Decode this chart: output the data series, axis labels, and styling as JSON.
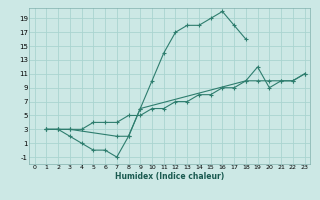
{
  "xlabel": "Humidex (Indice chaleur)",
  "bg_color": "#cce8e5",
  "grid_color": "#aad4d0",
  "line_color": "#2e7d6e",
  "xlim": [
    -0.5,
    23.5
  ],
  "ylim": [
    -2,
    20.5
  ],
  "xticks": [
    0,
    1,
    2,
    3,
    4,
    5,
    6,
    7,
    8,
    9,
    10,
    11,
    12,
    13,
    14,
    15,
    16,
    17,
    18,
    19,
    20,
    21,
    22,
    23
  ],
  "yticks": [
    -1,
    1,
    3,
    5,
    7,
    9,
    11,
    13,
    15,
    17,
    19
  ],
  "line1_x": [
    1,
    2,
    3,
    4,
    5,
    6,
    7,
    8,
    9,
    10,
    11,
    12,
    13,
    14,
    15,
    16,
    17,
    18
  ],
  "line1_y": [
    3,
    3,
    2,
    1,
    0,
    0,
    -1,
    2,
    6,
    10,
    14,
    17,
    18,
    18,
    19,
    20,
    18,
    16
  ],
  "line2_x": [
    1,
    2,
    3,
    4,
    5,
    6,
    7,
    8,
    9,
    10,
    11,
    12,
    13,
    14,
    15,
    16,
    17,
    18,
    19,
    20,
    21,
    22,
    23
  ],
  "line2_y": [
    3,
    3,
    3,
    3,
    4,
    4,
    4,
    5,
    5,
    6,
    6,
    7,
    7,
    8,
    8,
    9,
    9,
    10,
    10,
    10,
    10,
    10,
    11
  ],
  "line3_x": [
    1,
    2,
    3,
    7,
    8,
    9,
    18,
    19,
    20,
    21,
    22,
    23
  ],
  "line3_y": [
    3,
    3,
    3,
    2,
    2,
    6,
    10,
    12,
    9,
    10,
    10,
    11
  ]
}
